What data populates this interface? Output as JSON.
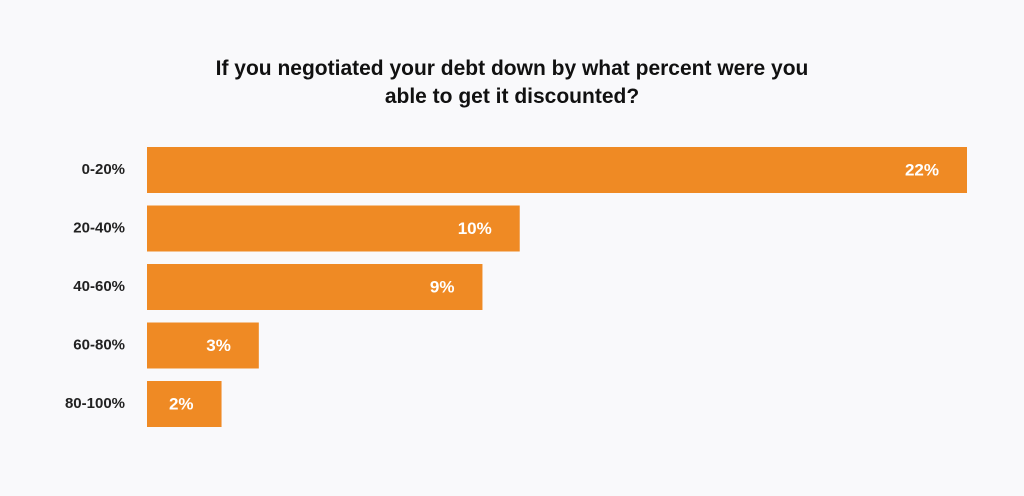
{
  "chart_data": {
    "type": "bar",
    "orientation": "horizontal",
    "title": "If you negotiated your debt down by what percent were you able to get it discounted?",
    "categories": [
      "0-20%",
      "20-40%",
      "40-60%",
      "60-80%",
      "80-100%"
    ],
    "values": [
      22,
      10,
      9,
      3,
      2
    ],
    "value_labels": [
      "22%",
      "10%",
      "9%",
      "3%",
      "2%"
    ],
    "color": "#ef8a24"
  }
}
